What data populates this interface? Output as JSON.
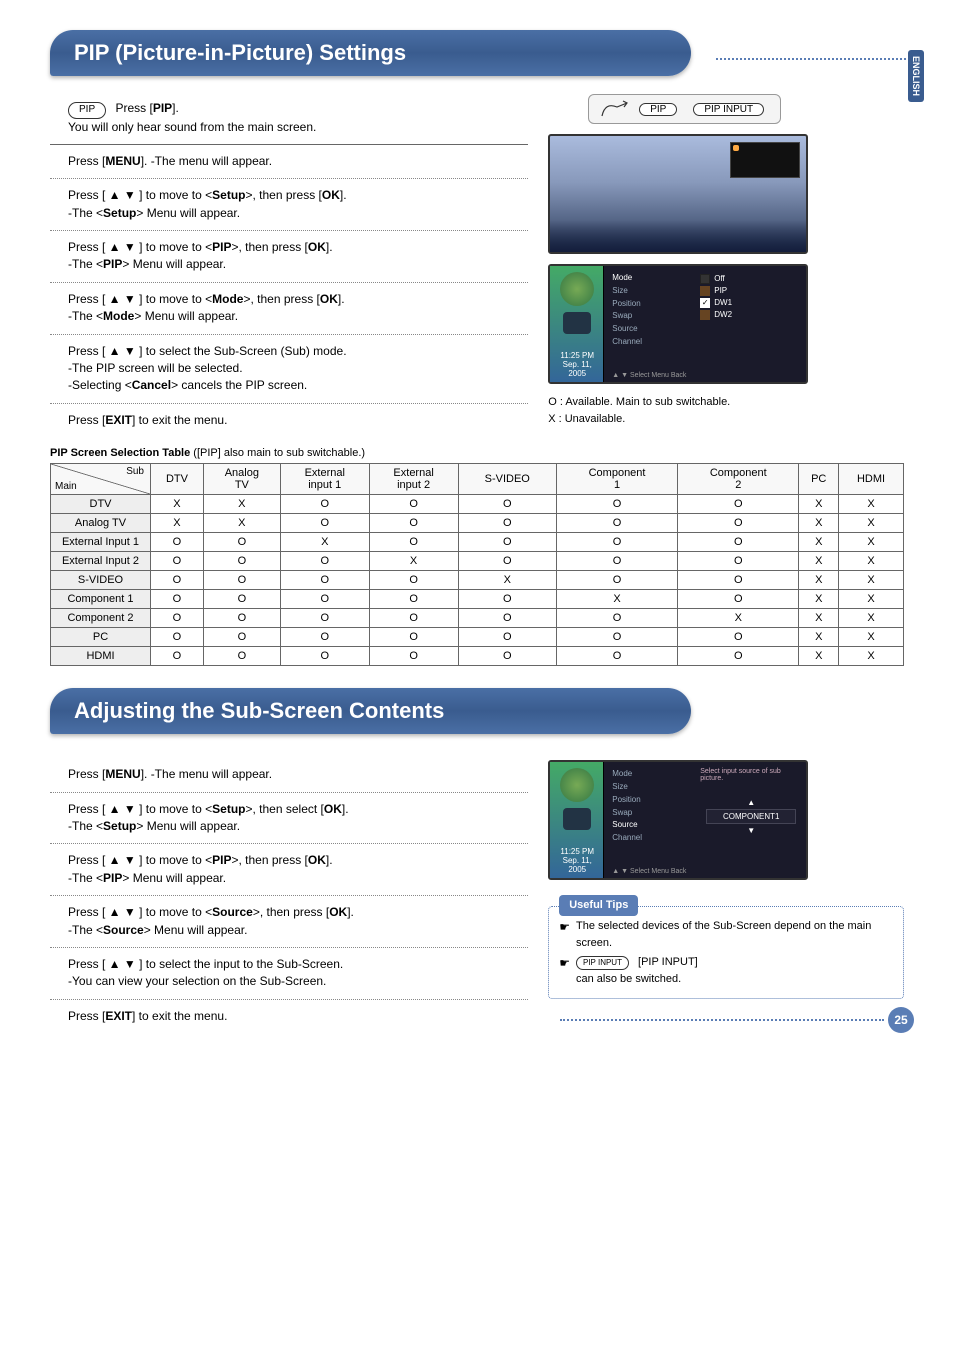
{
  "lang_tab": "ENGLISH",
  "page_number": "25",
  "section1": {
    "title": "PIP (Picture-in-Picture) Settings",
    "intro_badge": "PIP",
    "intro_text_prefix": "Press [",
    "intro_text_bold": "PIP",
    "intro_text_suffix": "].",
    "intro_sub": "You will only hear sound from the main screen.",
    "steps": [
      {
        "parts": [
          "Press [",
          "MENU",
          "]. -The menu will appear."
        ]
      },
      {
        "parts": [
          "Press [ ▲ ▼ ] to move to <",
          "Setup",
          ">, then press [",
          "OK",
          "]."
        ],
        "sub": "-The <Setup> Menu will appear."
      },
      {
        "parts": [
          "Press [ ▲ ▼ ] to move to <",
          "PIP",
          ">, then press [",
          "OK",
          "]."
        ],
        "sub": "-The <PIP> Menu will appear."
      },
      {
        "parts": [
          "Press [ ▲ ▼ ] to move to <",
          "Mode",
          ">, then press [",
          "OK",
          "]."
        ],
        "sub": "-The <Mode> Menu will appear."
      },
      {
        "parts": [
          "Press [ ▲ ▼ ] to select the Sub-Screen (Sub) mode."
        ],
        "sub": "-The PIP screen will be selected.",
        "sub2": "-Selecting <Cancel> cancels the PIP screen."
      },
      {
        "parts": [
          "Press [",
          "EXIT",
          "] to exit the menu."
        ]
      }
    ],
    "remote": {
      "btn1": "PIP",
      "btn2": "PIP INPUT"
    },
    "tv_screenshot_right_label": "",
    "osd": {
      "menu": [
        "Mode",
        "Size",
        "Position",
        "Swap",
        "Source",
        "Channel"
      ],
      "right": [
        {
          "label": "Off",
          "type": "dark"
        },
        {
          "label": "PIP",
          "type": "brown"
        },
        {
          "label": "DW1",
          "type": "on"
        },
        {
          "label": "DW2",
          "type": "brown"
        }
      ],
      "time": "11:25 PM",
      "date": "Sep. 11, 2005",
      "footer": "▲ ▼ Select  Menu  Back"
    },
    "legend_o": "O : Available. Main to sub switchable.",
    "legend_x": "X : Unavailable.",
    "table_caption": "PIP Screen Selection Table",
    "table_caption_note": " ([PIP] also main to sub switchable.)",
    "table_main_label": "Main",
    "table_sub_label": "Sub",
    "columns": [
      "DTV",
      "Analog TV",
      "External input 1",
      "External input 2",
      "S-VIDEO",
      "Component 1",
      "Component 2",
      "PC",
      "HDMI"
    ],
    "rows": [
      {
        "h": "DTV",
        "c": [
          "X",
          "X",
          "O",
          "O",
          "O",
          "O",
          "O",
          "X",
          "X"
        ]
      },
      {
        "h": "Analog TV",
        "c": [
          "X",
          "X",
          "O",
          "O",
          "O",
          "O",
          "O",
          "X",
          "X"
        ]
      },
      {
        "h": "External Input 1",
        "c": [
          "O",
          "O",
          "X",
          "O",
          "O",
          "O",
          "O",
          "X",
          "X"
        ]
      },
      {
        "h": "External Input 2",
        "c": [
          "O",
          "O",
          "O",
          "X",
          "O",
          "O",
          "O",
          "X",
          "X"
        ]
      },
      {
        "h": "S-VIDEO",
        "c": [
          "O",
          "O",
          "O",
          "O",
          "X",
          "O",
          "O",
          "X",
          "X"
        ]
      },
      {
        "h": "Component 1",
        "c": [
          "O",
          "O",
          "O",
          "O",
          "O",
          "X",
          "O",
          "X",
          "X"
        ]
      },
      {
        "h": "Component 2",
        "c": [
          "O",
          "O",
          "O",
          "O",
          "O",
          "O",
          "X",
          "X",
          "X"
        ]
      },
      {
        "h": "PC",
        "c": [
          "O",
          "O",
          "O",
          "O",
          "O",
          "O",
          "O",
          "X",
          "X"
        ]
      },
      {
        "h": "HDMI",
        "c": [
          "O",
          "O",
          "O",
          "O",
          "O",
          "O",
          "O",
          "X",
          "X"
        ]
      }
    ]
  },
  "section2": {
    "title": "Adjusting the Sub-Screen Contents",
    "steps": [
      {
        "parts": [
          "Press [",
          "MENU",
          "]. -The menu will appear."
        ]
      },
      {
        "parts": [
          "Press [ ▲ ▼ ] to move to <",
          "Setup",
          ">, then select [",
          "OK",
          "]."
        ],
        "sub": "-The <Setup> Menu will appear."
      },
      {
        "parts": [
          "Press [ ▲ ▼ ] to move to <",
          "PIP",
          ">, then press [",
          "OK",
          "]."
        ],
        "sub": "-The <PIP> Menu will appear."
      },
      {
        "parts": [
          "Press [ ▲ ▼ ] to move to <",
          "Source",
          ">, then press [",
          "OK",
          "]."
        ],
        "sub": "-The <Source> Menu will appear."
      },
      {
        "parts": [
          "Press [ ▲ ▼ ] to select the input to the Sub-Screen."
        ],
        "sub": "-You can view your selection on the Sub-Screen."
      },
      {
        "parts": [
          "Press [",
          "EXIT",
          "] to exit the menu."
        ]
      }
    ],
    "osd": {
      "menu": [
        "Mode",
        "Size",
        "Position",
        "Swap",
        "Source",
        "Channel"
      ],
      "right_title": "Select input source of sub picture.",
      "right_value": "COMPONENT1",
      "time": "11:25 PM",
      "date": "Sep. 11, 2005",
      "footer": "▲ ▼ Select  Menu  Back"
    },
    "tips_label": "Useful Tips",
    "tips": [
      "The selected devices of the Sub-Screen depend on the main screen.",
      "          [PIP INPUT] can also be switched."
    ],
    "tips_btn": "PIP INPUT"
  }
}
